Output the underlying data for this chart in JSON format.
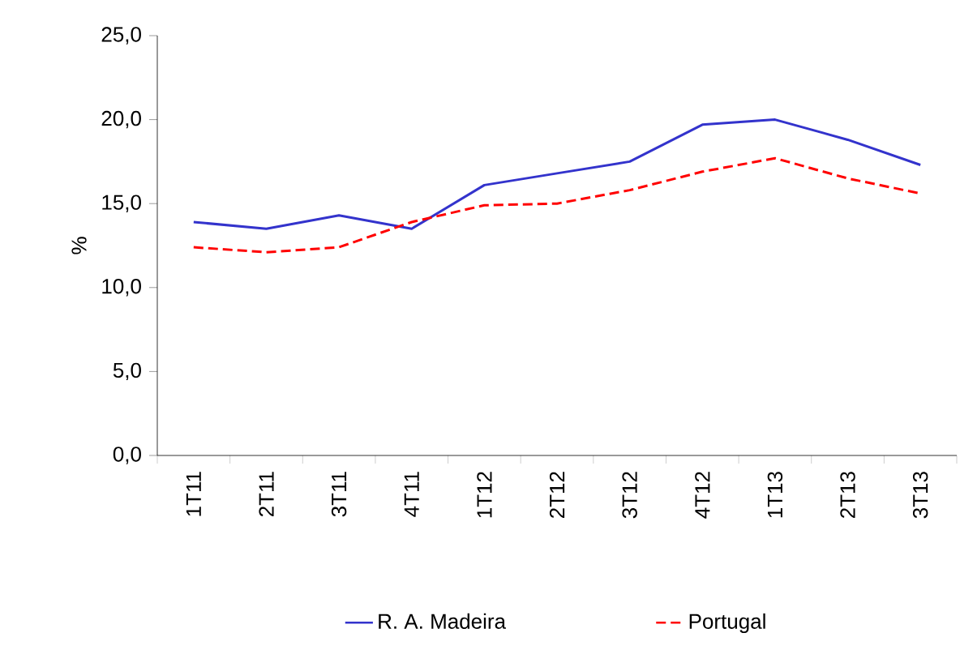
{
  "chart_data": {
    "type": "line",
    "ylabel": "%",
    "categories": [
      "1T11",
      "2T11",
      "3T11",
      "4T11",
      "1T12",
      "2T12",
      "3T12",
      "4T12",
      "1T13",
      "2T13",
      "3T13"
    ],
    "series": [
      {
        "name": "R. A. Madeira",
        "color": "#3333cc",
        "line_style": "solid",
        "values": [
          13.9,
          13.5,
          14.3,
          13.5,
          16.1,
          16.8,
          17.5,
          19.7,
          20.0,
          18.8,
          17.3
        ]
      },
      {
        "name": "Portugal",
        "color": "#ff0000",
        "line_style": "dashed",
        "values": [
          12.4,
          12.1,
          12.4,
          13.9,
          14.9,
          15.0,
          15.8,
          16.9,
          17.7,
          16.5,
          15.6
        ]
      }
    ],
    "ylim": [
      0,
      25
    ],
    "yticks": [
      {
        "value": 0,
        "label": "0,0"
      },
      {
        "value": 5,
        "label": "5,0"
      },
      {
        "value": 10,
        "label": "10,0"
      },
      {
        "value": 15,
        "label": "15,0"
      },
      {
        "value": 20,
        "label": "20,0"
      },
      {
        "value": 25,
        "label": "25,0"
      }
    ],
    "grid": false,
    "legend": "bottom",
    "marker": "none"
  }
}
